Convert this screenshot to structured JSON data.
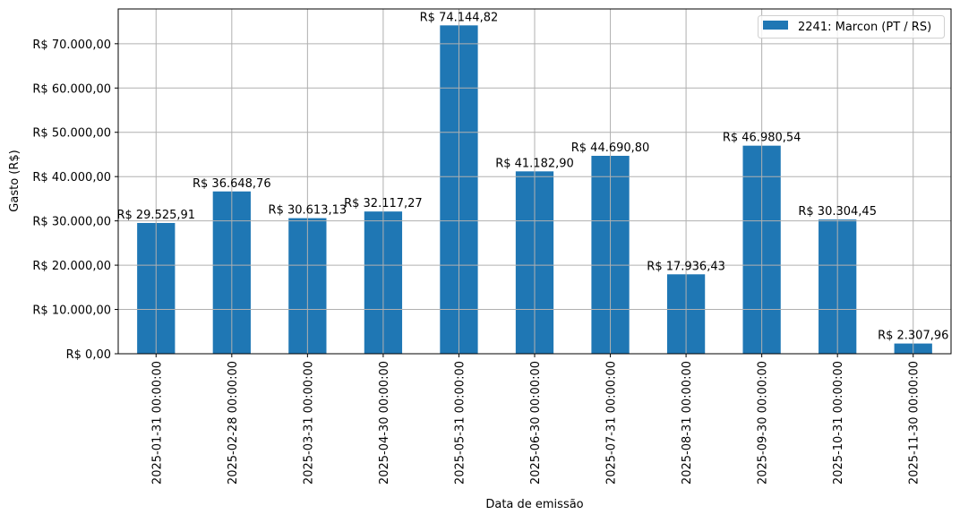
{
  "chart_data": {
    "type": "bar",
    "title": "",
    "xlabel": "Data de emissão",
    "ylabel": "Gasto (R$)",
    "categories": [
      "2025-01-31 00:00:00",
      "2025-02-28 00:00:00",
      "2025-03-31 00:00:00",
      "2025-04-30 00:00:00",
      "2025-05-31 00:00:00",
      "2025-06-30 00:00:00",
      "2025-07-31 00:00:00",
      "2025-08-31 00:00:00",
      "2025-09-30 00:00:00",
      "2025-10-31 00:00:00",
      "2025-11-30 00:00:00"
    ],
    "series": [
      {
        "name": "2241: Marcon (PT / RS)",
        "values": [
          29525.91,
          36648.76,
          30613.13,
          32117.27,
          74144.82,
          41182.9,
          44690.8,
          17936.43,
          46980.54,
          30304.45,
          2307.96
        ],
        "data_labels": [
          "R$ 29.525,91",
          "R$ 36.648,76",
          "R$ 30.613,13",
          "R$ 32.117,27",
          "R$ 74.144,82",
          "R$ 41.182,90",
          "R$ 44.690,80",
          "R$ 17.936,43",
          "R$ 46.980,54",
          "R$ 30.304,45",
          "R$ 2.307,96"
        ],
        "color": "#1f77b4"
      }
    ],
    "ylim": [
      0,
      77852
    ],
    "yticks": [
      0,
      10000,
      20000,
      30000,
      40000,
      50000,
      60000,
      70000
    ],
    "ytick_labels": [
      "R$ 0,00",
      "R$ 10.000,00",
      "R$ 20.000,00",
      "R$ 30.000,00",
      "R$ 40.000,00",
      "R$ 50.000,00",
      "R$ 60.000,00",
      "R$ 70.000,00"
    ],
    "grid": true,
    "legend": "top-right"
  }
}
